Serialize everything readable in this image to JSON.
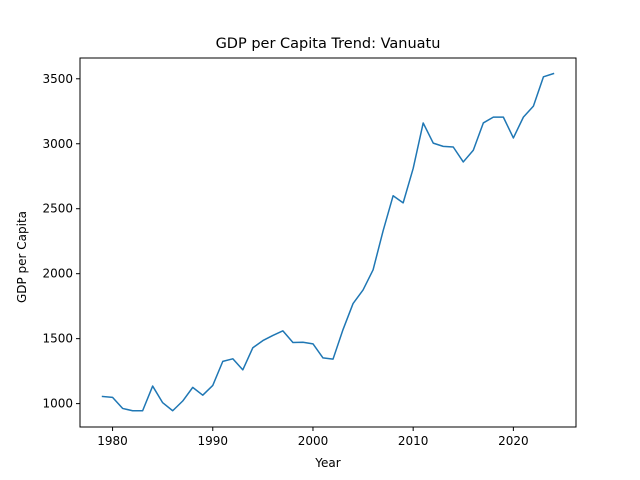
{
  "chart_data": {
    "type": "line",
    "title": "GDP per Capita Trend: Vanuatu",
    "xlabel": "Year",
    "ylabel": "GDP per Capita",
    "xlim": [
      1976.75,
      2026.25
    ],
    "ylim": [
      820,
      3660
    ],
    "xticks": [
      1980,
      1990,
      2000,
      2010,
      2020
    ],
    "yticks": [
      1000,
      1500,
      2000,
      2500,
      3000,
      3500
    ],
    "grid": false,
    "series": [
      {
        "color": "#1f77b4",
        "x": [
          1979,
          1980,
          1981,
          1982,
          1983,
          1984,
          1985,
          1986,
          1987,
          1988,
          1989,
          1990,
          1991,
          1992,
          1993,
          1994,
          1995,
          1996,
          1997,
          1998,
          1999,
          2000,
          2001,
          2002,
          2003,
          2004,
          2005,
          2006,
          2007,
          2008,
          2009,
          2010,
          2011,
          2012,
          2013,
          2014,
          2015,
          2016,
          2017,
          2018,
          2019,
          2020,
          2021,
          2022,
          2023,
          2024
        ],
        "y": [
          1055,
          1048,
          963,
          945,
          945,
          1135,
          1007,
          945,
          1020,
          1125,
          1065,
          1140,
          1325,
          1345,
          1260,
          1430,
          1485,
          1525,
          1560,
          1470,
          1472,
          1460,
          1352,
          1342,
          1570,
          1770,
          1875,
          2030,
          2330,
          2600,
          2545,
          2810,
          3160,
          3005,
          2980,
          2975,
          2860,
          2950,
          3160,
          3205,
          3205,
          3045,
          3205,
          3290,
          3515,
          3540
        ]
      }
    ]
  }
}
